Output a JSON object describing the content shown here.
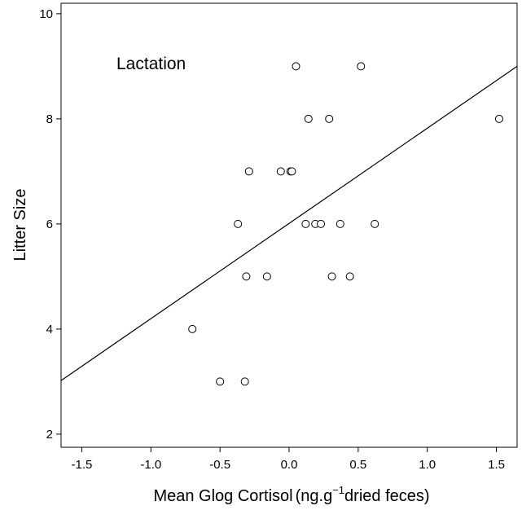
{
  "chart_data": {
    "type": "scatter",
    "annotation": "Lactation",
    "xlabel": "Mean Glog Cortisol",
    "xlabel_unit_prefix": "(ng.g",
    "xlabel_unit_sup": "−1",
    "xlabel_unit_suffix": "dried feces)",
    "ylabel": "Litter Size",
    "xlim": [
      -1.65,
      1.65
    ],
    "ylim": [
      1.75,
      10.2
    ],
    "xticks": [
      -1.5,
      -1.0,
      -0.5,
      0.0,
      0.5,
      1.0,
      1.5
    ],
    "xtick_labels": [
      "-1.5",
      "-1.0",
      "-0.5",
      "0.0",
      "0.5",
      "1.0",
      "1.5"
    ],
    "yticks": [
      2,
      4,
      6,
      8,
      10
    ],
    "ytick_labels": [
      "2",
      "4",
      "6",
      "8",
      "10"
    ],
    "points": [
      {
        "x": 0.05,
        "y": 9
      },
      {
        "x": 0.52,
        "y": 9
      },
      {
        "x": 0.14,
        "y": 8
      },
      {
        "x": 0.29,
        "y": 8
      },
      {
        "x": 1.52,
        "y": 8
      },
      {
        "x": -0.29,
        "y": 7
      },
      {
        "x": -0.06,
        "y": 7
      },
      {
        "x": 0.01,
        "y": 7
      },
      {
        "x": 0.02,
        "y": 7
      },
      {
        "x": -0.37,
        "y": 6
      },
      {
        "x": 0.12,
        "y": 6
      },
      {
        "x": 0.19,
        "y": 6
      },
      {
        "x": 0.23,
        "y": 6
      },
      {
        "x": 0.37,
        "y": 6
      },
      {
        "x": 0.62,
        "y": 6
      },
      {
        "x": -0.31,
        "y": 5
      },
      {
        "x": -0.16,
        "y": 5
      },
      {
        "x": 0.31,
        "y": 5
      },
      {
        "x": 0.44,
        "y": 5
      },
      {
        "x": -0.7,
        "y": 4
      },
      {
        "x": -0.5,
        "y": 3
      },
      {
        "x": -0.32,
        "y": 3
      }
    ],
    "fit_line": {
      "x": [
        -1.65,
        1.65
      ],
      "y": [
        3.02,
        9.0
      ]
    },
    "grid": false,
    "legend": "none"
  }
}
